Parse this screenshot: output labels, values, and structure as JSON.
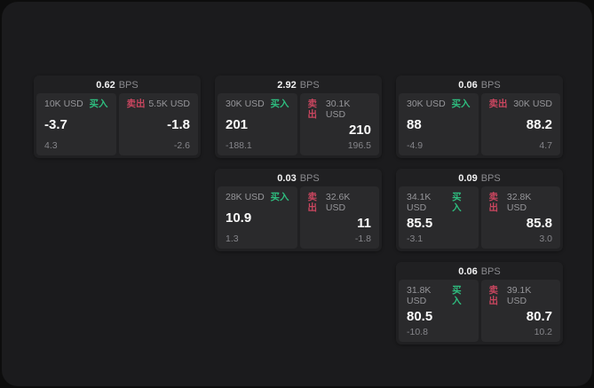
{
  "labels": {
    "bps_unit": "BPS",
    "buy": "买入",
    "sell": "卖出"
  },
  "colors": {
    "buy_accent": "#2ebd7f",
    "sell_accent": "#c9465f",
    "panel_background": "#1b1b1d",
    "card_background": "#202022",
    "tile_background": "#2a2a2c"
  },
  "cards": [
    {
      "bps": "0.62",
      "buy": {
        "size": "10K USD",
        "price": "-3.7",
        "sub": "4.3"
      },
      "sell": {
        "size": "5.5K USD",
        "price": "-1.8",
        "sub": "-2.6"
      }
    },
    {
      "bps": "2.92",
      "buy": {
        "size": "30K USD",
        "price": "201",
        "sub": "-188.1"
      },
      "sell": {
        "size": "30.1K USD",
        "price": "210",
        "sub": "196.5"
      }
    },
    {
      "bps": "0.06",
      "buy": {
        "size": "30K USD",
        "price": "88",
        "sub": "-4.9"
      },
      "sell": {
        "size": "30K USD",
        "price": "88.2",
        "sub": "4.7"
      }
    },
    {
      "bps": "0.03",
      "buy": {
        "size": "28K USD",
        "price": "10.9",
        "sub": "1.3"
      },
      "sell": {
        "size": "32.6K USD",
        "price": "11",
        "sub": "-1.8"
      }
    },
    {
      "bps": "0.09",
      "buy": {
        "size": "34.1K USD",
        "price": "85.5",
        "sub": "-3.1"
      },
      "sell": {
        "size": "32.8K USD",
        "price": "85.8",
        "sub": "3.0"
      }
    },
    {
      "bps": "0.06",
      "buy": {
        "size": "31.8K USD",
        "price": "80.5",
        "sub": "-10.8"
      },
      "sell": {
        "size": "39.1K USD",
        "price": "80.7",
        "sub": "10.2"
      }
    }
  ]
}
